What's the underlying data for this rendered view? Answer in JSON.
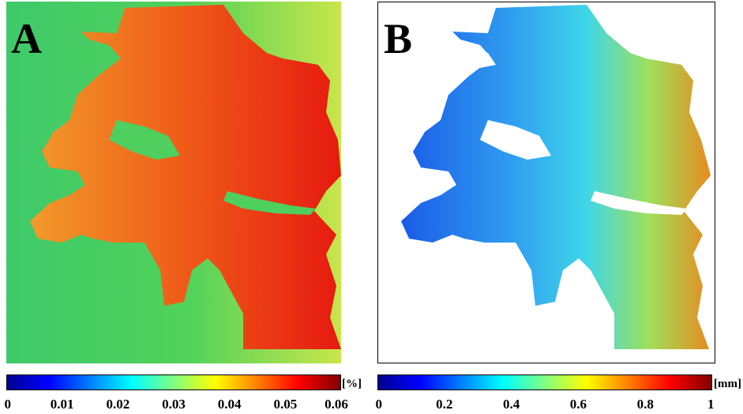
{
  "panels": [
    {
      "letter": "A",
      "colorbar": {
        "unit": "[%]",
        "ticks": [
          "0",
          "0.01",
          "0.02",
          "0.03",
          "0.04",
          "0.05",
          "0.06"
        ],
        "colormap": "jet"
      },
      "background_color": "#3ad26c",
      "region_color": "#e62a12"
    },
    {
      "letter": "B",
      "colorbar": {
        "unit": "[mm]",
        "ticks": [
          "0",
          "0.2",
          "0.4",
          "0.6",
          "0.8",
          "1"
        ],
        "colormap": "jet"
      },
      "background_color": "#ffffff",
      "region_color": "#2aa8ee"
    }
  ],
  "colormap_stops": [
    "#00008f",
    "#0000ff",
    "#0080ff",
    "#00ffff",
    "#80ff80",
    "#ffff00",
    "#ff8000",
    "#ff0000",
    "#800000"
  ]
}
